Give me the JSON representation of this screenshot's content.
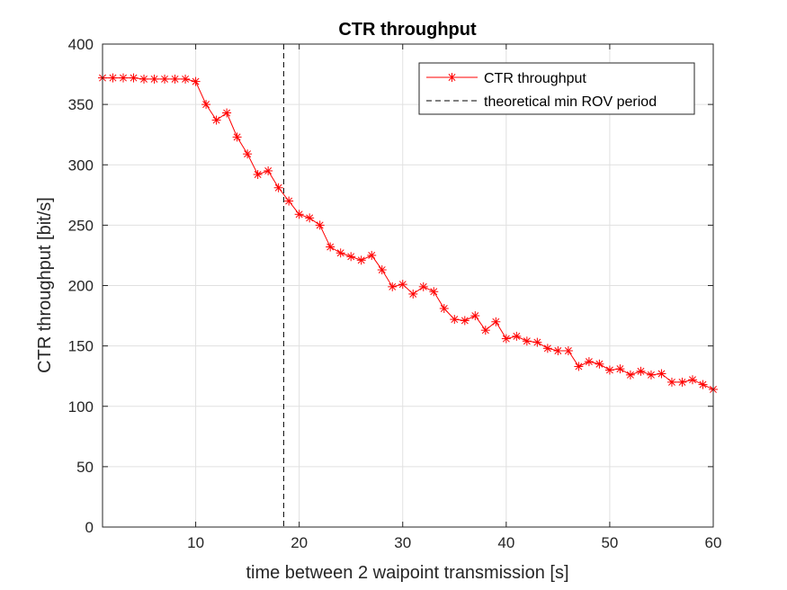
{
  "chart_data": {
    "type": "line",
    "title": "CTR throughput",
    "xlabel": "time between 2 waipoint transmission [s]",
    "ylabel": "CTR throughput [bit/s]",
    "xlim": [
      1,
      60
    ],
    "ylim": [
      0,
      400
    ],
    "xticks": [
      10,
      20,
      30,
      40,
      50,
      60
    ],
    "yticks": [
      0,
      50,
      100,
      150,
      200,
      250,
      300,
      350,
      400
    ],
    "grid": true,
    "legend_position": "top-right",
    "series": [
      {
        "name": "CTR throughput",
        "color": "#ff0000",
        "marker": "asterisk",
        "x": [
          1,
          2,
          3,
          4,
          5,
          6,
          7,
          8,
          9,
          10,
          11,
          12,
          13,
          14,
          15,
          16,
          17,
          18,
          19,
          20,
          21,
          22,
          23,
          24,
          25,
          26,
          27,
          28,
          29,
          30,
          31,
          32,
          33,
          34,
          35,
          36,
          37,
          38,
          39,
          40,
          41,
          42,
          43,
          44,
          45,
          46,
          47,
          48,
          49,
          50,
          51,
          52,
          53,
          54,
          55,
          56,
          57,
          58,
          59,
          60
        ],
        "y": [
          372,
          372,
          372,
          372,
          371,
          371,
          371,
          371,
          371,
          369,
          350,
          337,
          343,
          323,
          309,
          292,
          295,
          281,
          270,
          259,
          256,
          250,
          232,
          227,
          224,
          221,
          225,
          213,
          199,
          201,
          193,
          199,
          195,
          181,
          172,
          171,
          175,
          163,
          170,
          156,
          158,
          154,
          153,
          148,
          146,
          146,
          133,
          137,
          135,
          130,
          131,
          126,
          129,
          126,
          127,
          120,
          120,
          122,
          118,
          114
        ]
      },
      {
        "name": "theoretical min ROV period",
        "color": "#000000",
        "style": "dashed",
        "x_value": 18.5
      }
    ]
  }
}
